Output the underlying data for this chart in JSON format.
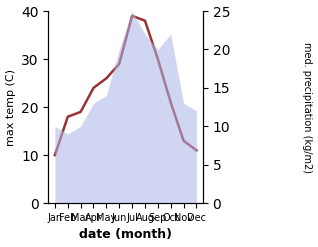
{
  "months": [
    "Jan",
    "Feb",
    "Mar",
    "Apr",
    "May",
    "Jun",
    "Jul",
    "Aug",
    "Sep",
    "Oct",
    "Nov",
    "Dec"
  ],
  "max_temp": [
    10.0,
    18.0,
    19.0,
    24.0,
    26.0,
    29.0,
    39.0,
    38.0,
    30.0,
    21.0,
    13.0,
    11.0
  ],
  "precipitation": [
    10.0,
    9.0,
    10.0,
    13.0,
    14.0,
    20.0,
    25.0,
    22.0,
    20.0,
    22.0,
    13.0,
    12.0
  ],
  "temp_color": "#993333",
  "precip_fill_color": "#aab4e8",
  "ylim_left": [
    0,
    40
  ],
  "ylim_right": [
    0,
    25
  ],
  "yticks_left": [
    0,
    10,
    20,
    30,
    40
  ],
  "yticks_right": [
    0,
    5,
    10,
    15,
    20,
    25
  ],
  "ylabel_left": "max temp (C)",
  "ylabel_right": "med. precipitation (kg/m2)",
  "xlabel": "date (month)",
  "fill_alpha": 0.55,
  "linewidth": 1.8,
  "background_color": "#ffffff"
}
